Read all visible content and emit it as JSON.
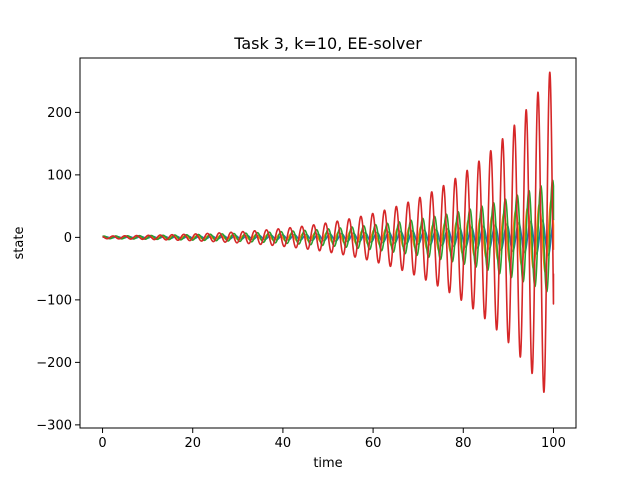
{
  "chart_data": {
    "type": "line",
    "title": "Task 3, k=10, EE-solver",
    "xlabel": "time",
    "ylabel": "state",
    "xlim": [
      -5,
      105
    ],
    "ylim": [
      -305,
      287
    ],
    "x_ticks": [
      0,
      20,
      40,
      60,
      80,
      100
    ],
    "y_ticks": [
      -300,
      -200,
      -100,
      0,
      100,
      200
    ],
    "x_tick_labels": [
      "0",
      "20",
      "40",
      "60",
      "80",
      "100"
    ],
    "y_tick_labels": [
      "−300",
      "−200",
      "−100",
      "0",
      "100",
      "200"
    ],
    "grid": false,
    "legend": "none",
    "x_range": [
      0,
      100
    ],
    "series": [
      {
        "color": "#1f77b4",
        "amplitude_start": 1,
        "amplitude_end": 30,
        "omega": 2.4,
        "phase": 0.0,
        "end_value": 28
      },
      {
        "color": "#ff7f0e",
        "amplitude_start": 1,
        "amplitude_end": 60,
        "omega": 2.4,
        "phase": 1.57,
        "end_value": -20
      },
      {
        "color": "#2ca02c",
        "amplitude_start": 2,
        "amplitude_end": 92,
        "omega": 2.4,
        "phase": 0.8,
        "end_value": 28
      },
      {
        "color": "#d62728",
        "amplitude_start": 2,
        "amplitude_end": 275,
        "omega": 2.4,
        "phase": 2.3,
        "end_value": -58
      }
    ]
  }
}
